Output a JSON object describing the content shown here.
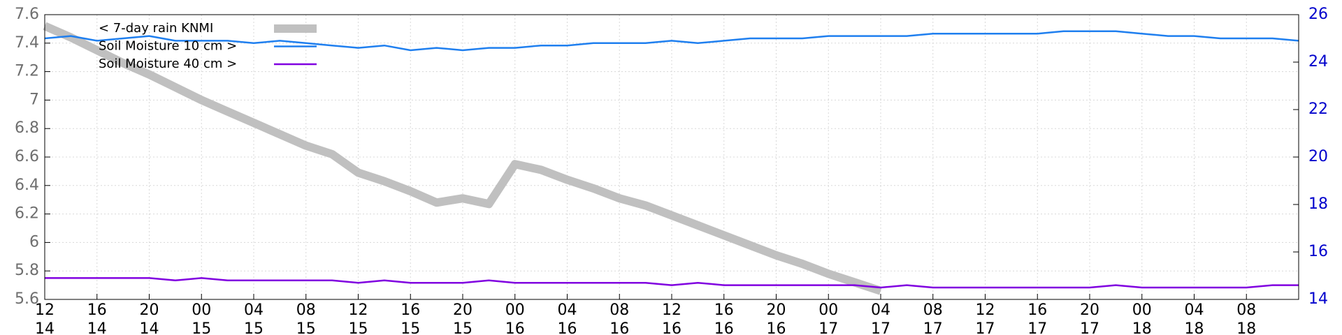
{
  "chart_data": {
    "type": "line",
    "xlim": [
      "14 12",
      "18 12"
    ],
    "xticks": [
      {
        "value": "14 12",
        "label": [
          "12",
          "14"
        ]
      },
      {
        "value": "14 16",
        "label": [
          "16",
          "14"
        ]
      },
      {
        "value": "14 20",
        "label": [
          "20",
          "14"
        ]
      },
      {
        "value": "15 00",
        "label": [
          "00",
          "15"
        ]
      },
      {
        "value": "15 04",
        "label": [
          "04",
          "15"
        ]
      },
      {
        "value": "15 08",
        "label": [
          "08",
          "15"
        ]
      },
      {
        "value": "15 12",
        "label": [
          "12",
          "15"
        ]
      },
      {
        "value": "15 16",
        "label": [
          "16",
          "15"
        ]
      },
      {
        "value": "15 20",
        "label": [
          "20",
          "15"
        ]
      },
      {
        "value": "16 00",
        "label": [
          "00",
          "16"
        ]
      },
      {
        "value": "16 04",
        "label": [
          "04",
          "16"
        ]
      },
      {
        "value": "16 08",
        "label": [
          "08",
          "16"
        ]
      },
      {
        "value": "16 12",
        "label": [
          "12",
          "16"
        ]
      },
      {
        "value": "16 16",
        "label": [
          "16",
          "16"
        ]
      },
      {
        "value": "16 20",
        "label": [
          "20",
          "16"
        ]
      },
      {
        "value": "17 00",
        "label": [
          "00",
          "17"
        ]
      },
      {
        "value": "17 04",
        "label": [
          "04",
          "17"
        ]
      },
      {
        "value": "17 08",
        "label": [
          "08",
          "17"
        ]
      },
      {
        "value": "17 12",
        "label": [
          "12",
          "17"
        ]
      },
      {
        "value": "17 16",
        "label": [
          "16",
          "17"
        ]
      },
      {
        "value": "17 20",
        "label": [
          "20",
          "17"
        ]
      },
      {
        "value": "18 00",
        "label": [
          "00",
          "18"
        ]
      },
      {
        "value": "18 04",
        "label": [
          "04",
          "18"
        ]
      },
      {
        "value": "18 08",
        "label": [
          "08",
          "18"
        ]
      }
    ],
    "ylim": [
      5.6,
      7.6
    ],
    "yticks": [
      5.6,
      5.8,
      6,
      6.2,
      6.4,
      6.6,
      6.8,
      7,
      7.2,
      7.4,
      7.6
    ],
    "y2lim": [
      14,
      26
    ],
    "y2ticks": [
      14,
      16,
      18,
      20,
      22,
      24,
      26
    ],
    "grid": true,
    "legend": "upper-left",
    "x": [
      "14 12",
      "14 14",
      "14 16",
      "14 18",
      "14 20",
      "14 22",
      "15 00",
      "15 02",
      "15 04",
      "15 06",
      "15 08",
      "15 10",
      "15 12",
      "15 14",
      "15 16",
      "15 18",
      "15 20",
      "15 22",
      "16 00",
      "16 02",
      "16 04",
      "16 06",
      "16 08",
      "16 10",
      "16 12",
      "16 14",
      "16 16",
      "16 18",
      "16 20",
      "16 22",
      "17 00",
      "17 02",
      "17 04",
      "17 06",
      "17 08",
      "17 10",
      "17 12",
      "17 14",
      "17 16",
      "17 18",
      "17 20",
      "17 22",
      "18 00",
      "18 02",
      "18 04",
      "18 06",
      "18 08",
      "18 10",
      "18 12"
    ],
    "series": [
      {
        "name": "< 7-day rain KNMI",
        "color": "#c0c0c0",
        "values": [
          7.52,
          7.44,
          7.35,
          7.26,
          7.18,
          7.09,
          7.0,
          6.92,
          6.84,
          6.76,
          6.68,
          6.62,
          6.49,
          6.43,
          6.36,
          6.28,
          6.31,
          6.27,
          6.55,
          6.51,
          6.44,
          6.38,
          6.31,
          6.26,
          6.19,
          6.12,
          6.05,
          5.98,
          5.91,
          5.85,
          5.78,
          5.72,
          5.66,
          null,
          null,
          null,
          null,
          null,
          null,
          null,
          null,
          null,
          null,
          null,
          null,
          null,
          null,
          null,
          null
        ]
      },
      {
        "name": "Soil Moisture 10 cm >",
        "color": "#1f7fef",
        "axis": "y2",
        "values": [
          25.0,
          25.1,
          24.9,
          25.0,
          25.1,
          24.9,
          24.9,
          24.9,
          24.8,
          24.9,
          24.8,
          24.7,
          24.6,
          24.7,
          24.5,
          24.6,
          24.5,
          24.6,
          24.6,
          24.7,
          24.7,
          24.8,
          24.8,
          24.8,
          24.9,
          24.8,
          24.9,
          25.0,
          25.0,
          25.0,
          25.1,
          25.1,
          25.1,
          25.1,
          25.2,
          25.2,
          25.2,
          25.2,
          25.2,
          25.3,
          25.3,
          25.3,
          25.2,
          25.1,
          25.1,
          25.0,
          25.0,
          25.0,
          24.9
        ]
      },
      {
        "name": "Soil Moisture 40 cm >",
        "color": "#8000e0",
        "axis": "y2",
        "values": [
          14.9,
          14.9,
          14.9,
          14.9,
          14.9,
          14.8,
          14.9,
          14.8,
          14.8,
          14.8,
          14.8,
          14.8,
          14.7,
          14.8,
          14.7,
          14.7,
          14.7,
          14.8,
          14.7,
          14.7,
          14.7,
          14.7,
          14.7,
          14.7,
          14.6,
          14.7,
          14.6,
          14.6,
          14.6,
          14.6,
          14.6,
          14.6,
          14.5,
          14.6,
          14.5,
          14.5,
          14.5,
          14.5,
          14.5,
          14.5,
          14.5,
          14.6,
          14.5,
          14.5,
          14.5,
          14.5,
          14.5,
          14.6,
          14.6
        ]
      }
    ]
  }
}
